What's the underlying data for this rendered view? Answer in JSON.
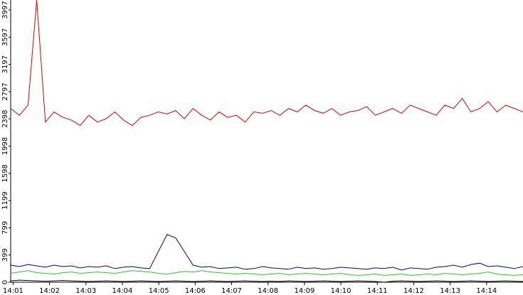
{
  "chart_data": {
    "type": "line",
    "xlim": [
      "14:00:56",
      "14:15:00"
    ],
    "xticks": [
      "14:01",
      "14:02",
      "14:03",
      "14:04",
      "14:05",
      "14:06",
      "14:07",
      "14:08",
      "14:09",
      "14:10",
      "14:11",
      "14:12",
      "14:13",
      "14:14"
    ],
    "ylim": [
      0,
      4143
    ],
    "yticks": [
      0,
      399,
      799,
      1199,
      1598,
      1998,
      2398,
      2797,
      3197,
      3597,
      3997
    ],
    "series": [
      {
        "color": "#dd0000",
        "values": [
          2550,
          2450,
          2600,
          4143,
          2350,
          2500,
          2420,
          2380,
          2300,
          2450,
          2350,
          2400,
          2500,
          2380,
          2300,
          2420,
          2450,
          2500,
          2470,
          2520,
          2400,
          2550,
          2450,
          2380,
          2500,
          2420,
          2450,
          2350,
          2500,
          2480,
          2520,
          2450,
          2550,
          2500,
          2600,
          2520,
          2480,
          2550,
          2450,
          2500,
          2520,
          2580,
          2450,
          2500,
          2550,
          2480,
          2600,
          2550,
          2500,
          2450,
          2600,
          2550,
          2700,
          2500,
          2550,
          2650,
          2500,
          2600,
          2550,
          2500
        ]
      },
      {
        "color": "#0000aa",
        "values": [
          250,
          230,
          260,
          240,
          220,
          250,
          230,
          240,
          210,
          230,
          220,
          240,
          200,
          220,
          230,
          210,
          200,
          450,
          700,
          650,
          450,
          250,
          220,
          230,
          200,
          210,
          220,
          190,
          200,
          230,
          210,
          200,
          190,
          220,
          200,
          210,
          190,
          200,
          220,
          210,
          200,
          190,
          210,
          200,
          220,
          180,
          210,
          200,
          190,
          220,
          230,
          250,
          220,
          260,
          280,
          230,
          240,
          220,
          200,
          230
        ]
      },
      {
        "color": "#22cc22",
        "values": [
          130,
          150,
          170,
          140,
          130,
          120,
          140,
          150,
          130,
          140,
          150,
          140,
          130,
          150,
          170,
          160,
          150,
          130,
          120,
          140,
          160,
          150,
          170,
          150,
          140,
          130,
          120,
          130,
          120,
          110,
          120,
          130,
          110,
          120,
          130,
          120,
          110,
          120,
          130,
          110,
          100,
          110,
          120,
          100,
          110,
          120,
          100,
          110,
          120,
          110,
          130,
          120,
          110,
          120,
          130,
          150,
          120,
          110,
          100,
          110
        ]
      },
      {
        "color": "#000000",
        "values": [
          20,
          30,
          25,
          20,
          15,
          20,
          25,
          20,
          15,
          10,
          15,
          20,
          15,
          10,
          15,
          20,
          15,
          10,
          15,
          20,
          15,
          10,
          15,
          20,
          15,
          10,
          15,
          20,
          15,
          10,
          15,
          10,
          20,
          15,
          10,
          15,
          20,
          15,
          10,
          15,
          20,
          15,
          10,
          0,
          15,
          20,
          15,
          10,
          15,
          20,
          15,
          10,
          15,
          20,
          15,
          10,
          15,
          20,
          15,
          10
        ]
      }
    ]
  }
}
